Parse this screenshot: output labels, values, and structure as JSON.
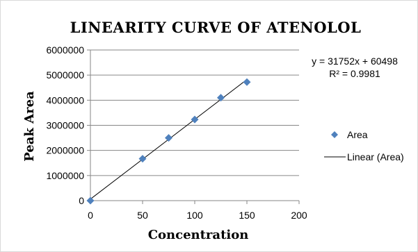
{
  "chart_data": {
    "type": "scatter",
    "title": "LINEARITY CURVE OF ATENOLOL",
    "xlabel": "Concentration",
    "ylabel": "Peak Area",
    "xlim": [
      0,
      200
    ],
    "ylim": [
      0,
      6000000
    ],
    "x_ticks": [
      0,
      50,
      100,
      150,
      200
    ],
    "y_ticks": [
      0,
      1000000,
      2000000,
      3000000,
      4000000,
      5000000,
      6000000
    ],
    "grid": "horizontal",
    "legend_position": "right",
    "series": [
      {
        "name": "Area",
        "marker": "diamond",
        "color": "#4F81BD",
        "points": [
          {
            "x": 0,
            "y": 0
          },
          {
            "x": 50,
            "y": 1670000
          },
          {
            "x": 75,
            "y": 2500000
          },
          {
            "x": 100,
            "y": 3230000
          },
          {
            "x": 125,
            "y": 4100000
          },
          {
            "x": 150,
            "y": 4720000
          }
        ]
      }
    ],
    "trendline": {
      "name": "Linear (Area)",
      "slope": 31752,
      "intercept": 60498,
      "x_range": [
        0,
        150
      ],
      "color": "#000000",
      "equation": "y = 31752x + 60498",
      "r_squared": "R² = 0.9981"
    }
  }
}
